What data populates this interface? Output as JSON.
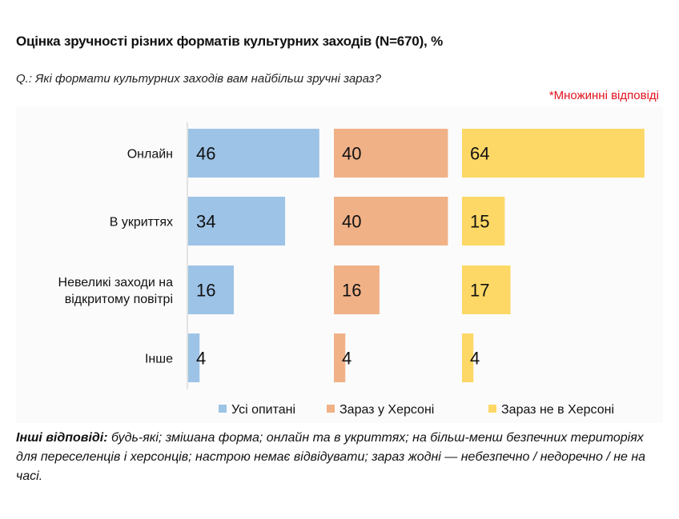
{
  "header": {
    "title": "Оцінка зручності різних форматів культурних заходів (N=670), %",
    "question": "Q.: Які формати культурних заходів вам найбільш зручні зараз?",
    "note": "*Множинні відповіді"
  },
  "chart_data": {
    "type": "bar",
    "orientation": "horizontal",
    "layout": "small-multiples",
    "title": "Оцінка зручності різних форматів культурних заходів (N=670), %",
    "categories": [
      [
        "Онлайн"
      ],
      [
        "В укриттях"
      ],
      [
        "Невеликі заходи на",
        "відкритому повітрі"
      ],
      [
        "Інше"
      ]
    ],
    "series": [
      {
        "name": "Усі опитані",
        "color": "#9dc3e6",
        "values": [
          46,
          34,
          16,
          4
        ]
      },
      {
        "name": "Зараз у Херсоні",
        "color": "#f1b187",
        "values": [
          40,
          40,
          16,
          4
        ]
      },
      {
        "name": "Зараз не в Херсоні",
        "color": "#fdd866",
        "values": [
          64,
          15,
          17,
          4
        ]
      }
    ],
    "xlim": [
      0,
      100
    ],
    "grid": false,
    "legend_position": "bottom"
  },
  "footnote": {
    "label": "Інші відповіді:",
    "text": " будь-які; змішана форма; онлайн та в укриттях; на більш-менш безпечних територіях для переселенців і херсонців; настрою немає відвідувати; зараз жодні — небезпечно / недоречно / не на часі."
  }
}
